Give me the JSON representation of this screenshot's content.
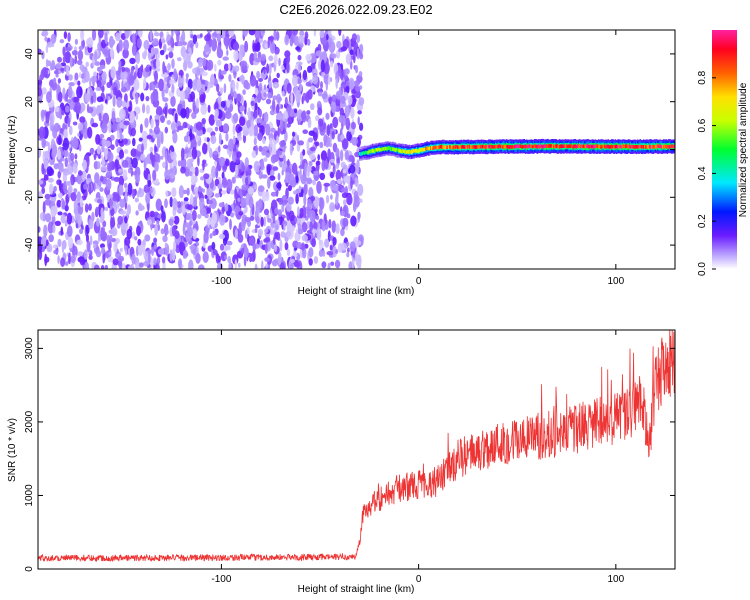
{
  "title": "C2E6.2026.022.09.23.E02",
  "chart_data": [
    {
      "type": "heatmap",
      "xlabel": "Height of straight line (km)",
      "ylabel": "Frequency (Hz)",
      "xlim": [
        -193,
        130
      ],
      "ylim": [
        -50,
        50
      ],
      "xticks": [
        -100,
        0,
        100
      ],
      "yticks": [
        -40,
        -20,
        0,
        20,
        40
      ],
      "colorbar": {
        "label": "Normalized spectral amplitude",
        "range": [
          0.0,
          1.0
        ],
        "ticks": [
          0.0,
          0.2,
          0.4,
          0.6,
          0.8
        ]
      },
      "noise_region_x": [
        -193,
        -30
      ],
      "signal_track": {
        "x": [
          -30,
          -25,
          -20,
          -15,
          -10,
          -5,
          0,
          5,
          10,
          20,
          40,
          60,
          80,
          100,
          115,
          130
        ],
        "freq": [
          -2,
          -1,
          0,
          0.5,
          -0.5,
          -1,
          -0.5,
          0.5,
          1,
          1,
          1.2,
          1.3,
          1.3,
          1.2,
          1.2,
          1.3
        ],
        "amplitude": [
          0.35,
          0.55,
          0.6,
          0.55,
          0.6,
          0.65,
          0.7,
          0.75,
          0.8,
          0.85,
          0.9,
          0.9,
          0.9,
          0.92,
          0.9,
          0.9
        ]
      }
    },
    {
      "type": "line",
      "xlabel": "Height of straight line (km)",
      "ylabel": "SNR (10 * v/v)",
      "xlim": [
        -193,
        130
      ],
      "ylim": [
        0,
        3250
      ],
      "xticks": [
        -100,
        0,
        100
      ],
      "yticks": [
        0,
        1000,
        2000,
        3000
      ],
      "series": [
        {
          "color": "#ee3333",
          "x": [
            -193,
            -150,
            -100,
            -60,
            -32,
            -30,
            -28,
            -20,
            -10,
            0,
            10,
            20,
            40,
            60,
            80,
            100,
            110,
            113,
            117,
            120,
            130
          ],
          "y": [
            150,
            150,
            155,
            160,
            165,
            350,
            800,
            950,
            1100,
            1150,
            1200,
            1500,
            1700,
            1800,
            1900,
            2050,
            2200,
            2350,
            1600,
            2600,
            2800
          ]
        }
      ]
    }
  ]
}
